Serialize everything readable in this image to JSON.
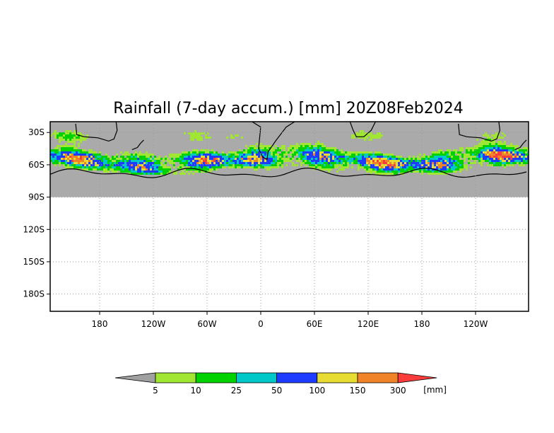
{
  "chart_data": {
    "type": "heatmap",
    "title": "Rainfall (7-day accum.) [mm] 20Z08Feb2024",
    "x_ticks": [
      "180",
      "120W",
      "60W",
      "0",
      "60E",
      "120E",
      "180",
      "120W"
    ],
    "y_ticks": [
      "30S",
      "60S",
      "90S",
      "120S",
      "150S",
      "180S"
    ],
    "xlim": [
      -270,
      180
    ],
    "ylim": [
      -196,
      -20
    ],
    "grid": true,
    "data_region": {
      "lat_min": -90,
      "lat_max": -20,
      "no_data_color": "#aaaaaa"
    },
    "legend": {
      "unit": "[mm]",
      "thresholds": [
        "5",
        "10",
        "25",
        "50",
        "100",
        "150",
        "300"
      ],
      "colors": [
        "#a0a0a0",
        "#a0e632",
        "#00d200",
        "#00c8c8",
        "#1e3cff",
        "#e6dc32",
        "#f08228",
        "#fa3c3c"
      ]
    }
  }
}
